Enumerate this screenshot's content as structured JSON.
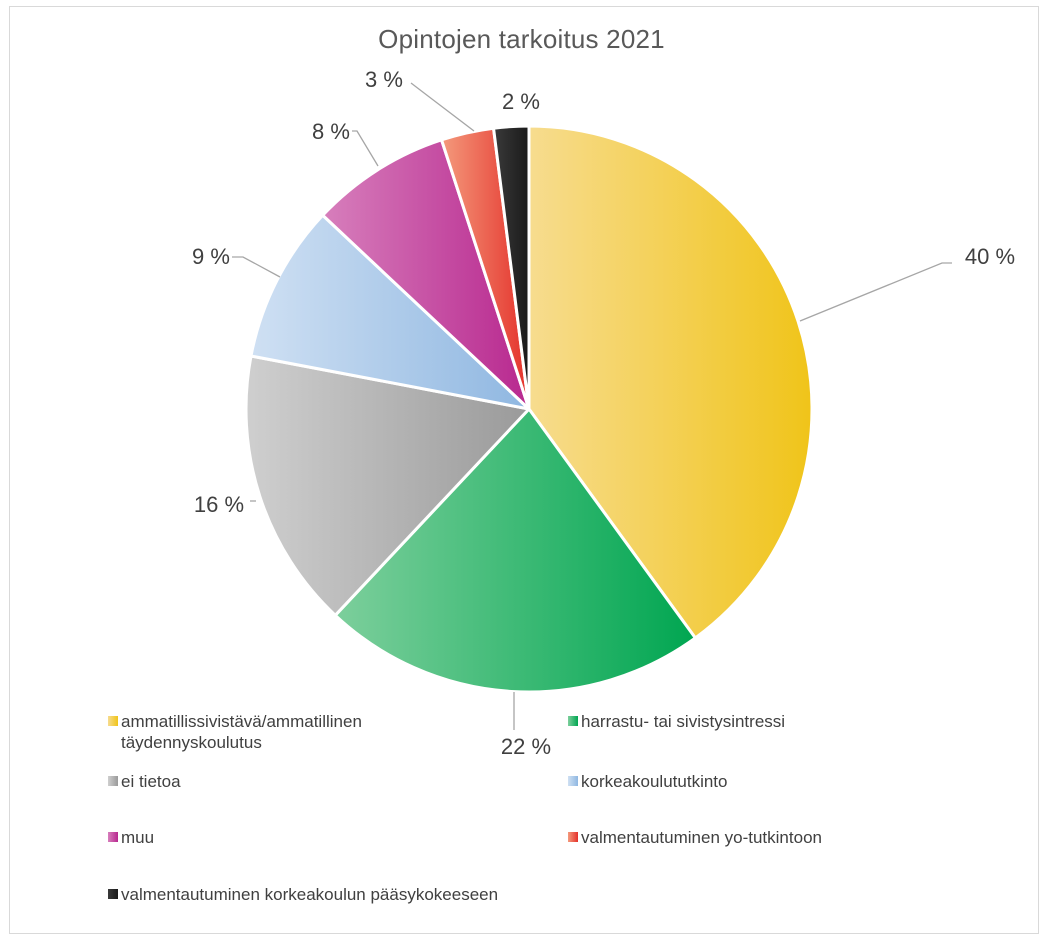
{
  "chart_data": {
    "type": "pie",
    "title": "Opintojen tarkoitus 2021",
    "legend_position": "bottom",
    "slices": [
      {
        "label": "ammatillissivistävä/ammatillinen\ntäydennyskoulutus",
        "value": 40,
        "data_label": "40 %",
        "color": "#f0c419",
        "color_light": "#f7dc8f"
      },
      {
        "label": "harrastu- tai sivistysintressi",
        "value": 22,
        "data_label": "22 %",
        "color": "#00a651",
        "color_light": "#7dcf9c"
      },
      {
        "label": "ei tietoa",
        "value": 16,
        "data_label": "16 %",
        "color": "#9a9a9a",
        "color_light": "#cfcfcf"
      },
      {
        "label": "korkeakoulututkinto",
        "value": 9,
        "data_label": "9 %",
        "color": "#8fb7e1",
        "color_light": "#cfe0f3"
      },
      {
        "label": "muu",
        "value": 8,
        "data_label": "8 %",
        "color": "#b8288f",
        "color_light": "#d77fbc"
      },
      {
        "label": "valmentautuminen yo-tutkintoon",
        "value": 3,
        "data_label": "3 %",
        "color": "#e4312b",
        "color_light": "#f49a7c"
      },
      {
        "label": "valmentautuminen korkeakoulun pääsykokeeseen",
        "value": 2,
        "data_label": "2 %",
        "color": "#1a1a1a",
        "color_light": "#3a3a3a"
      }
    ]
  }
}
